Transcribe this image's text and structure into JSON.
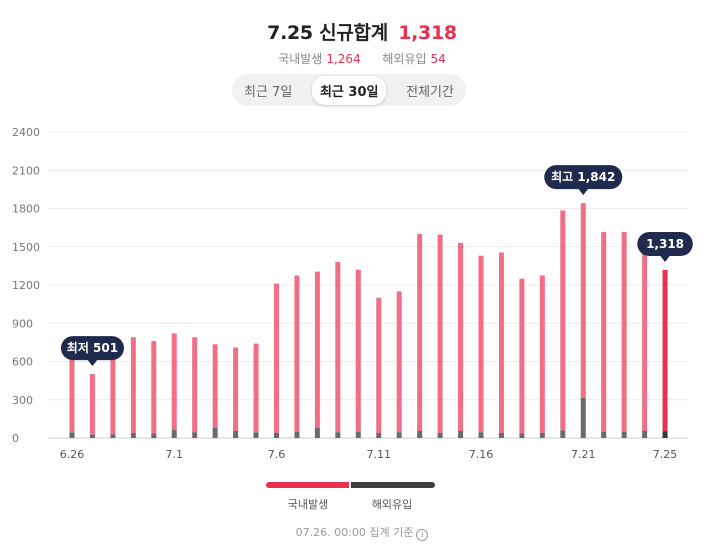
{
  "header": {
    "title": "7.25 신규합계",
    "total": "1,318",
    "domestic_label": "국내발생",
    "domestic_value": "1,264",
    "imported_label": "해외유입",
    "imported_value": "54"
  },
  "tabs": [
    {
      "label": "최근 7일",
      "active": false
    },
    {
      "label": "최근 30일",
      "active": true
    },
    {
      "label": "전체기간",
      "active": false
    }
  ],
  "legend": {
    "domestic": "국내발생",
    "imported": "해외유입"
  },
  "footer": {
    "text": "07.26. 00:00 집계 기준",
    "info_icon": "info-icon"
  },
  "colors": {
    "domestic": "#f26e86",
    "domestic_latest": "#e8304f",
    "imported": "#6b6b6b",
    "imported_latest": "#3a3a3a",
    "tooltip_bg": "#1f2a4d"
  },
  "chart_data": {
    "type": "bar",
    "stacked": true,
    "ylim": [
      0,
      2400
    ],
    "yticks": [
      0,
      300,
      600,
      900,
      1200,
      1500,
      1800,
      2100,
      2400
    ],
    "xtick_labels": [
      "6.26",
      "7.1",
      "7.6",
      "7.11",
      "7.16",
      "7.21",
      "7.25"
    ],
    "categories": [
      "6.26",
      "6.27",
      "6.28",
      "6.29",
      "6.30",
      "7.1",
      "7.2",
      "7.3",
      "7.4",
      "7.5",
      "7.6",
      "7.7",
      "7.8",
      "7.9",
      "7.10",
      "7.11",
      "7.12",
      "7.13",
      "7.14",
      "7.15",
      "7.16",
      "7.17",
      "7.18",
      "7.19",
      "7.20",
      "7.21",
      "7.22",
      "7.23",
      "7.24",
      "7.25"
    ],
    "series": [
      {
        "name": "국내발생",
        "values": [
          590,
          475,
          585,
          750,
          725,
          755,
          745,
          655,
          655,
          695,
          1170,
          1225,
          1225,
          1335,
          1270,
          1060,
          1105,
          1545,
          1555,
          1475,
          1385,
          1415,
          1215,
          1235,
          1725,
          1527,
          1565,
          1565,
          1410,
          1264
        ]
      },
      {
        "name": "해외유입",
        "values": [
          45,
          26,
          29,
          40,
          35,
          65,
          45,
          80,
          55,
          45,
          40,
          50,
          80,
          45,
          50,
          40,
          45,
          55,
          40,
          55,
          45,
          40,
          35,
          40,
          60,
          315,
          50,
          50,
          55,
          54
        ]
      }
    ],
    "annotations": [
      {
        "label": "최저 501",
        "index": 1
      },
      {
        "label": "최고 1,842",
        "index": 25
      },
      {
        "label": "1,318",
        "index": 29
      }
    ]
  }
}
